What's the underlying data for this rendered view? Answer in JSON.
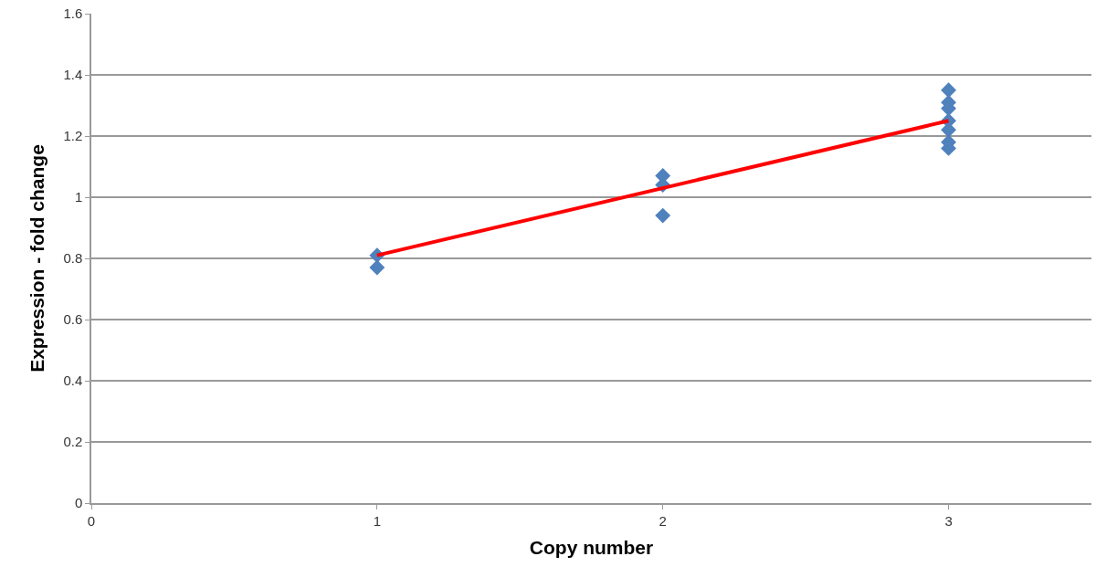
{
  "chart_data": {
    "type": "scatter",
    "xlabel": "Copy number",
    "ylabel": "Expression - fold change",
    "xlim": [
      0,
      3.5
    ],
    "xticks": [
      0,
      1,
      2,
      3
    ],
    "ylim": [
      0,
      1.6
    ],
    "yticks": [
      0,
      0.2,
      0.4,
      0.6,
      0.8,
      1,
      1.2,
      1.4,
      1.6
    ],
    "grid": "y",
    "series": [
      {
        "color": "#4f81bd",
        "marker": "diamond",
        "x": [
          1,
          1,
          2,
          2,
          2,
          3,
          3,
          3,
          3,
          3,
          3,
          3
        ],
        "values": [
          0.81,
          0.77,
          1.07,
          1.04,
          0.94,
          1.35,
          1.31,
          1.29,
          1.25,
          1.22,
          1.18,
          1.16
        ]
      },
      {
        "type": "line",
        "color": "#ff0000",
        "marker": "none",
        "line_style": "solid",
        "x": [
          1,
          3
        ],
        "values": [
          0.81,
          1.25
        ]
      }
    ]
  }
}
